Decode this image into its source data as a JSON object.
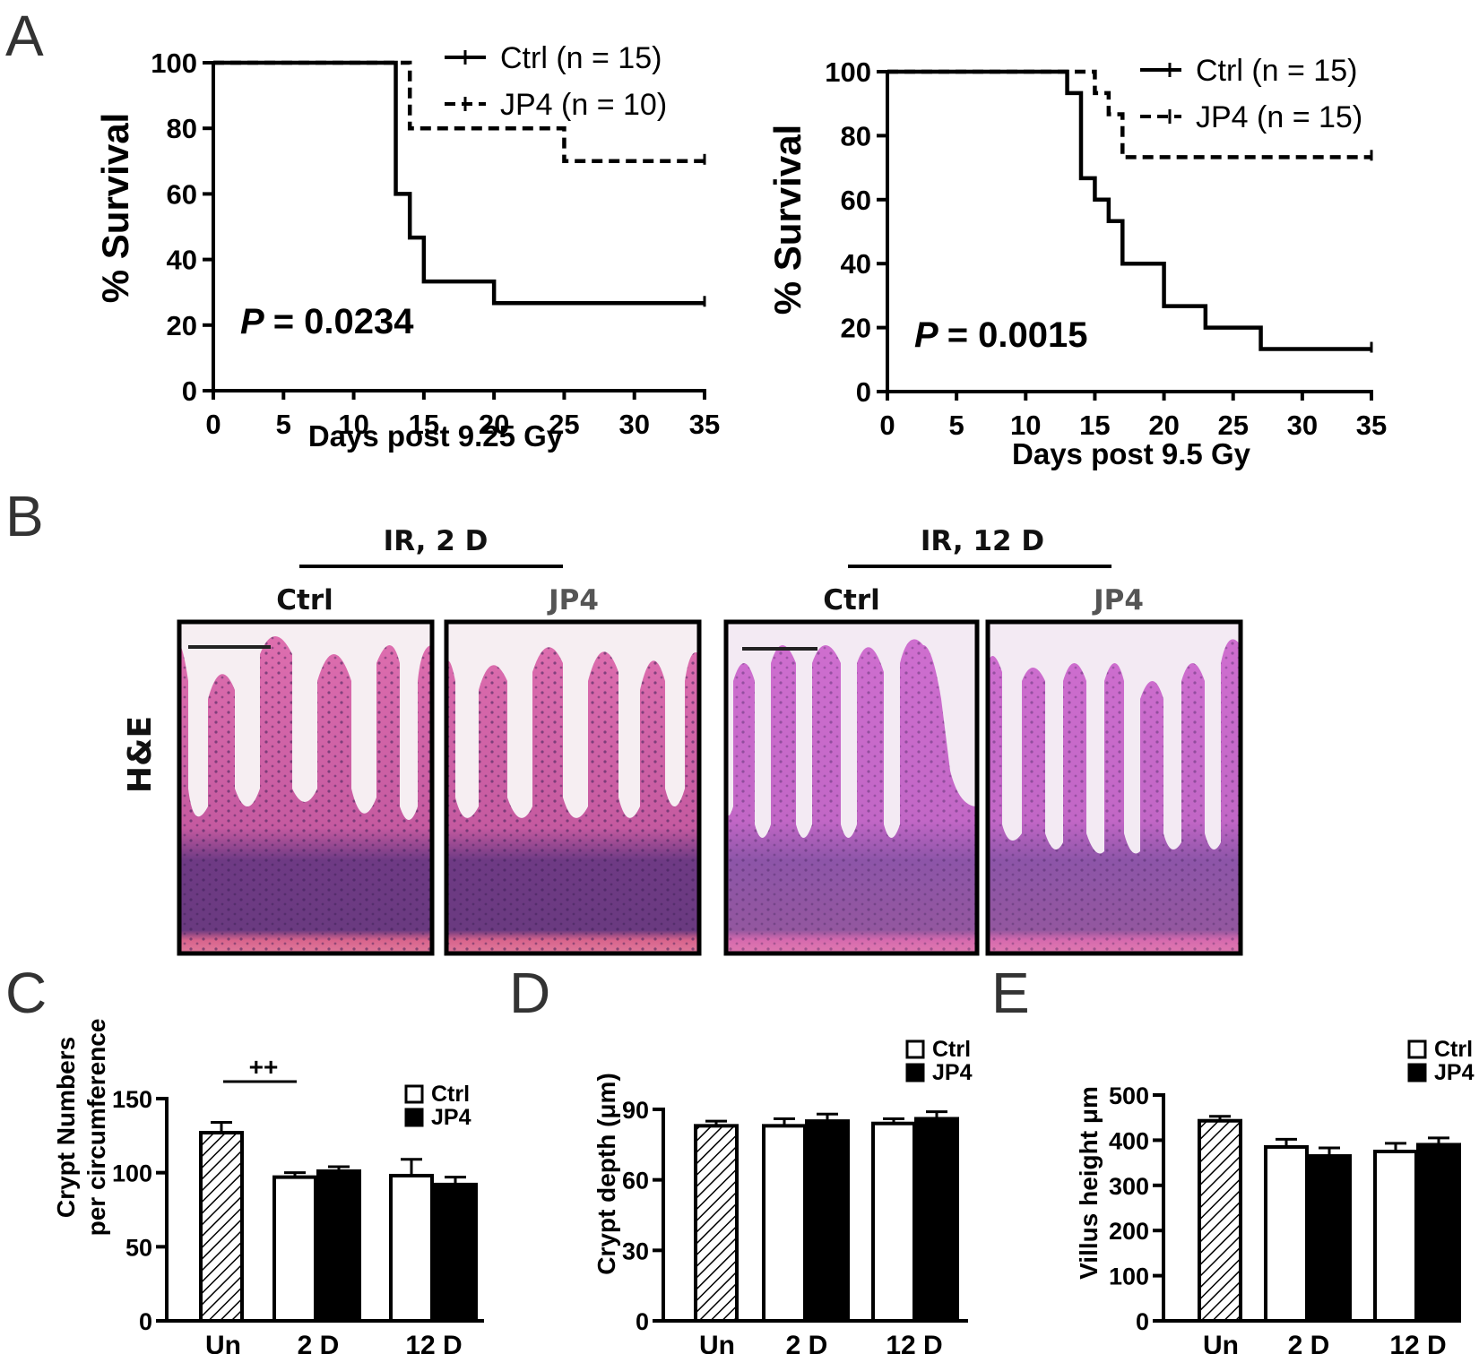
{
  "panels": {
    "a": "A",
    "b": "B",
    "c": "C",
    "d": "D",
    "e": "E"
  },
  "chart_data": [
    {
      "id": "A1",
      "type": "line",
      "subtype": "kaplan-meier",
      "xlabel": "Days post 9.25 Gy",
      "ylabel": "% Survival",
      "xlim": [
        0,
        35
      ],
      "ylim": [
        0,
        100
      ],
      "xticks": [
        0,
        5,
        10,
        15,
        20,
        25,
        30,
        35
      ],
      "yticks": [
        0,
        20,
        40,
        60,
        80,
        100
      ],
      "annotation": {
        "p_label": "P",
        "p_value": "= 0.0234"
      },
      "series": [
        {
          "name": "Ctrl (n = 15)",
          "style": "solid",
          "steps": [
            [
              0,
              100
            ],
            [
              13,
              60
            ],
            [
              14,
              46.7
            ],
            [
              15,
              33.3
            ],
            [
              20,
              26.7
            ],
            [
              35,
              26.7
            ]
          ]
        },
        {
          "name": "JP4 (n = 10)",
          "style": "dashed",
          "steps": [
            [
              0,
              100
            ],
            [
              14,
              80
            ],
            [
              25,
              70
            ],
            [
              35,
              70
            ]
          ]
        }
      ]
    },
    {
      "id": "A2",
      "type": "line",
      "subtype": "kaplan-meier",
      "xlabel": "Days post 9.5 Gy",
      "ylabel": "% Survival",
      "xlim": [
        0,
        35
      ],
      "ylim": [
        0,
        100
      ],
      "xticks": [
        0,
        5,
        10,
        15,
        20,
        25,
        30,
        35
      ],
      "yticks": [
        0,
        20,
        40,
        60,
        80,
        100
      ],
      "annotation": {
        "p_label": "P",
        "p_value": "= 0.0015"
      },
      "series": [
        {
          "name": "Ctrl (n = 15)",
          "style": "solid",
          "steps": [
            [
              0,
              100
            ],
            [
              13,
              93.3
            ],
            [
              14,
              66.7
            ],
            [
              15,
              60
            ],
            [
              16,
              53.3
            ],
            [
              17,
              40
            ],
            [
              20,
              26.7
            ],
            [
              23,
              20
            ],
            [
              27,
              13.3
            ],
            [
              35,
              13.3
            ]
          ]
        },
        {
          "name": "JP4 (n = 15)",
          "style": "dashed",
          "steps": [
            [
              0,
              100
            ],
            [
              15,
              93.3
            ],
            [
              16,
              86.7
            ],
            [
              17,
              73.3
            ],
            [
              35,
              73.3
            ]
          ]
        }
      ]
    },
    {
      "id": "C",
      "type": "bar",
      "ylabel_lines": [
        "Crypt Numbers",
        "per circumference"
      ],
      "ylim": [
        0,
        150
      ],
      "yticks": [
        0,
        50,
        100,
        150
      ],
      "groups": [
        "Un",
        "2 D",
        "12 D"
      ],
      "bars": [
        {
          "group": "Un",
          "series": "Un",
          "value": 127,
          "error": 7
        },
        {
          "group": "2 D",
          "series": "Ctrl",
          "value": 97,
          "error": 3
        },
        {
          "group": "2 D",
          "series": "JP4",
          "value": 101,
          "error": 3
        },
        {
          "group": "12 D",
          "series": "Ctrl",
          "value": 98,
          "error": 11
        },
        {
          "group": "12 D",
          "series": "JP4",
          "value": 92,
          "error": 5
        }
      ],
      "legend": [
        "Ctrl",
        "JP4"
      ],
      "significance": "++"
    },
    {
      "id": "D",
      "type": "bar",
      "ylabel": "Crypt depth (μm)",
      "ylim": [
        0,
        90
      ],
      "yticks": [
        0,
        30,
        60,
        90
      ],
      "groups": [
        "Un",
        "2 D",
        "12 D"
      ],
      "bars": [
        {
          "group": "Un",
          "series": "Un",
          "value": 83,
          "error": 2
        },
        {
          "group": "2 D",
          "series": "Ctrl",
          "value": 83,
          "error": 3
        },
        {
          "group": "2 D",
          "series": "JP4",
          "value": 85,
          "error": 3
        },
        {
          "group": "12 D",
          "series": "Ctrl",
          "value": 84,
          "error": 2
        },
        {
          "group": "12 D",
          "series": "JP4",
          "value": 86,
          "error": 3
        }
      ],
      "legend": [
        "Ctrl",
        "JP4"
      ]
    },
    {
      "id": "E",
      "type": "bar",
      "ylabel": "Villus height μm",
      "ylim": [
        0,
        500
      ],
      "yticks": [
        0,
        100,
        200,
        300,
        400,
        500
      ],
      "groups": [
        "Un",
        "2 D",
        "12 D"
      ],
      "bars": [
        {
          "group": "Un",
          "series": "Un",
          "value": 443,
          "error": 10
        },
        {
          "group": "2 D",
          "series": "Ctrl",
          "value": 385,
          "error": 17
        },
        {
          "group": "2 D",
          "series": "JP4",
          "value": 365,
          "error": 18
        },
        {
          "group": "12 D",
          "series": "Ctrl",
          "value": 375,
          "error": 18
        },
        {
          "group": "12 D",
          "series": "JP4",
          "value": 390,
          "error": 15
        }
      ],
      "legend": [
        "Ctrl",
        "JP4"
      ]
    }
  ],
  "histology": {
    "row_label": "H&E",
    "groups": [
      {
        "title": "IR, 2 D",
        "left": "Ctrl",
        "right": "JP4"
      },
      {
        "title": "IR, 12 D",
        "left": "Ctrl",
        "right": "JP4"
      }
    ]
  },
  "colors": {
    "axis": "#000000",
    "text": "#000000",
    "ctrl_bar": "#ffffff",
    "jp4_bar": "#000000",
    "he_pink": "#d9609f",
    "he_purple": "#7a3a86",
    "he_bg": "#f6eef2",
    "he_pink_12d": "#c861c4",
    "he_purple_12d": "#8e4a9e"
  }
}
